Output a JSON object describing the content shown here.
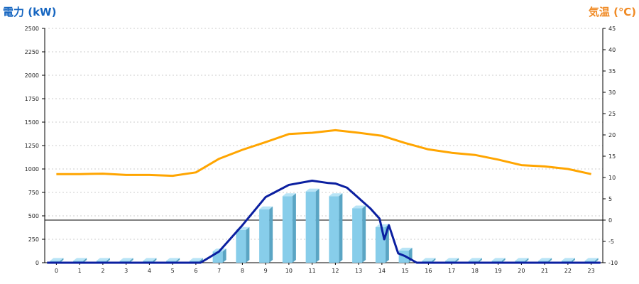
{
  "colors": {
    "left_title": "#1565c0",
    "right_title": "#f08a24",
    "bar": "#87cdea",
    "bar_side": "#5aa5c4",
    "bar_top": "#b8e4f6",
    "power_line": "#0b1fa0",
    "temp_line": "#ffa500",
    "grid": "#cccccc"
  },
  "chart_data": {
    "type": "bar",
    "left_axis_title": "電力 (kW)",
    "right_axis_title": "気温 (℃)",
    "x": [
      0,
      1,
      2,
      3,
      4,
      5,
      6,
      7,
      8,
      9,
      10,
      11,
      12,
      13,
      14,
      15,
      16,
      17,
      18,
      19,
      20,
      21,
      22,
      23
    ],
    "y_left": {
      "ticks": [
        0,
        250,
        500,
        750,
        1000,
        1250,
        1500,
        1750,
        2000,
        2250,
        2500
      ],
      "range": [
        0,
        2500
      ]
    },
    "y_right": {
      "ticks": [
        -10,
        -5,
        0,
        5,
        10,
        15,
        20,
        25,
        30,
        35,
        40,
        45
      ],
      "range": [
        -10,
        45
      ]
    },
    "grid": true,
    "series": [
      {
        "kind": "bar",
        "axis": "left",
        "values": [
          20,
          20,
          20,
          20,
          20,
          20,
          20,
          120,
          350,
          570,
          710,
          760,
          710,
          580,
          380,
          130,
          20,
          20,
          20,
          20,
          20,
          20,
          20,
          20
        ]
      },
      {
        "kind": "line",
        "axis": "left",
        "points": [
          [
            -0.4,
            0
          ],
          [
            6.2,
            0
          ],
          [
            7,
            120
          ],
          [
            8,
            400
          ],
          [
            9,
            700
          ],
          [
            10,
            830
          ],
          [
            11,
            875
          ],
          [
            11.7,
            850
          ],
          [
            12,
            845
          ],
          [
            12.5,
            800
          ],
          [
            13,
            690
          ],
          [
            13.5,
            580
          ],
          [
            13.9,
            470
          ],
          [
            14.1,
            250
          ],
          [
            14.3,
            400
          ],
          [
            14.5,
            250
          ],
          [
            14.7,
            100
          ],
          [
            15,
            70
          ],
          [
            15.5,
            0
          ],
          [
            23.4,
            0
          ]
        ]
      },
      {
        "kind": "line",
        "axis": "right",
        "points": [
          [
            0,
            10.8
          ],
          [
            1,
            10.8
          ],
          [
            2,
            10.9
          ],
          [
            3,
            10.6
          ],
          [
            4,
            10.6
          ],
          [
            5,
            10.4
          ],
          [
            6,
            11.2
          ],
          [
            7,
            14.4
          ],
          [
            8,
            16.5
          ],
          [
            9,
            18.3
          ],
          [
            10,
            20.2
          ],
          [
            11,
            20.5
          ],
          [
            12,
            21.1
          ],
          [
            13,
            20.5
          ],
          [
            14,
            19.8
          ],
          [
            15,
            18.1
          ],
          [
            16,
            16.6
          ],
          [
            17,
            15.8
          ],
          [
            18,
            15.3
          ],
          [
            19,
            14.2
          ],
          [
            20,
            12.9
          ],
          [
            21,
            12.6
          ],
          [
            22,
            12.0
          ],
          [
            23,
            10.8
          ]
        ]
      }
    ]
  }
}
